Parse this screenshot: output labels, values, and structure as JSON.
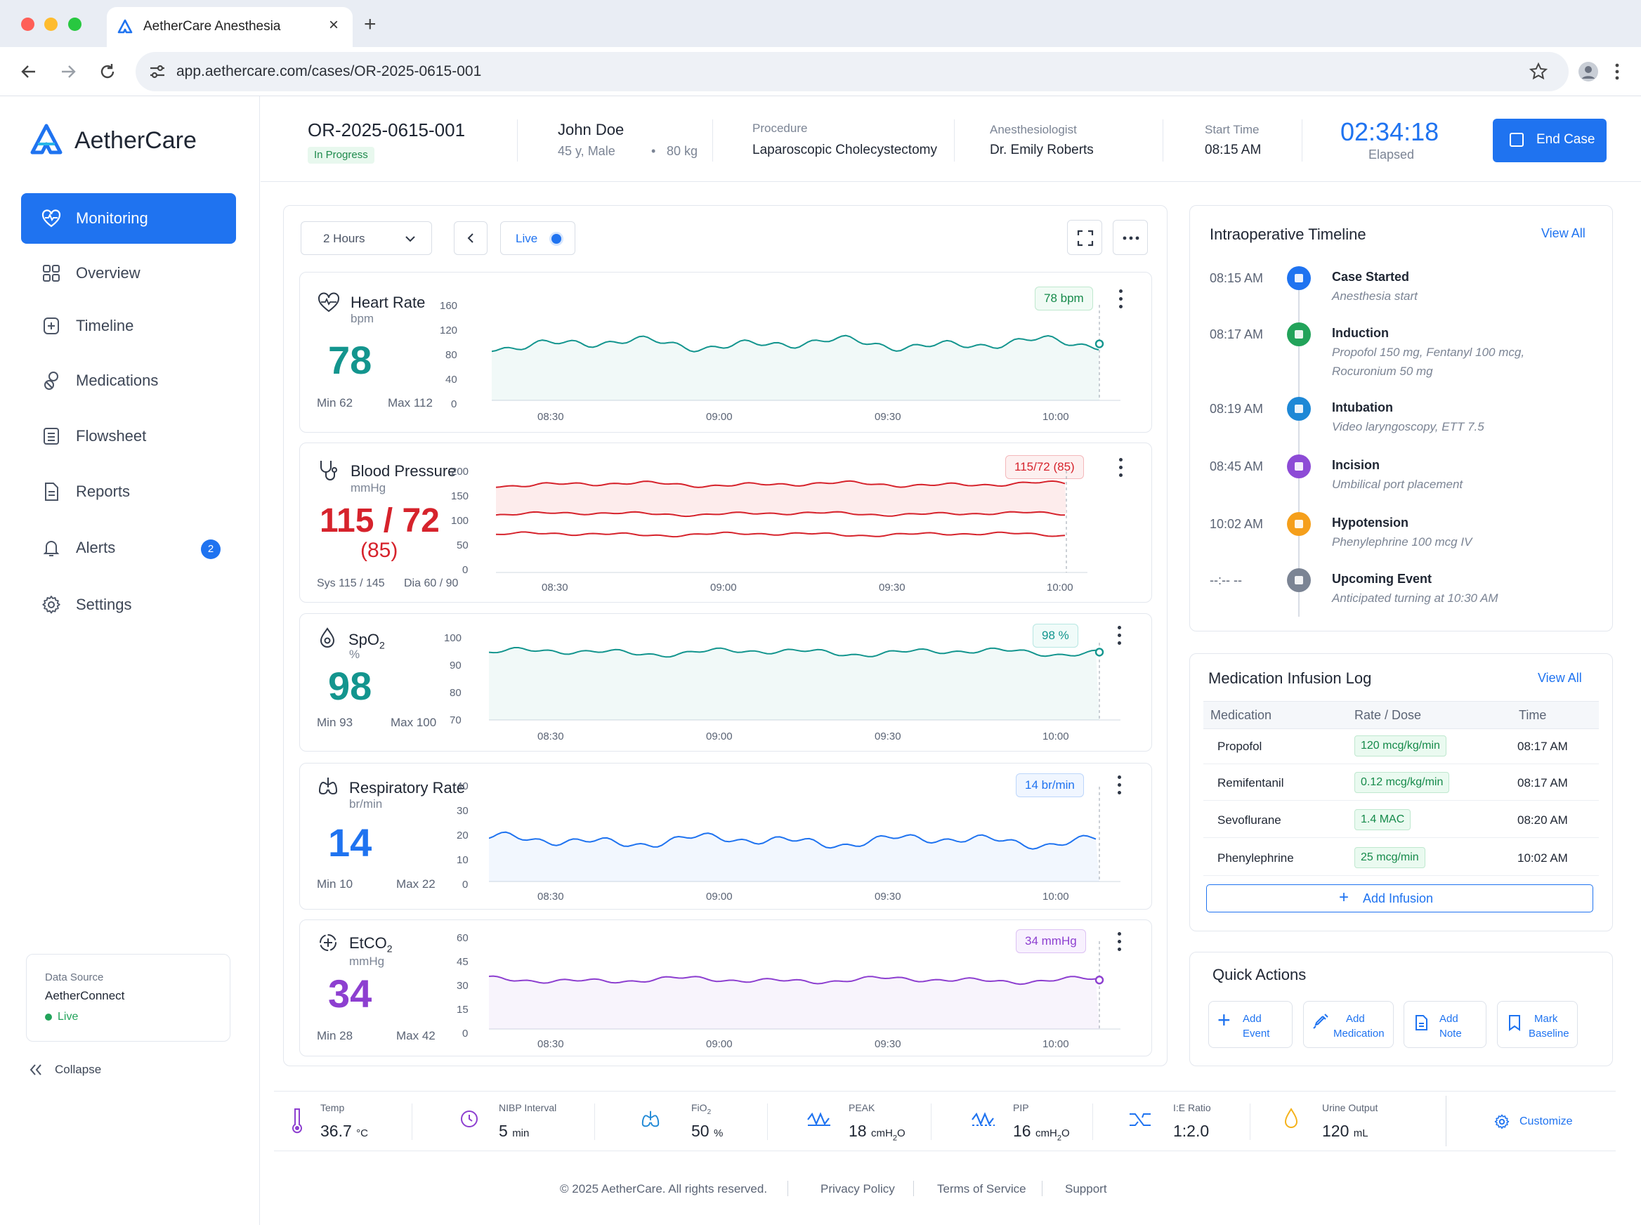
{
  "browser": {
    "tab_title": "AetherCare Anesthesia",
    "url": "app.aethercare.com/cases/OR-2025-0615-001"
  },
  "brand": {
    "name": "AetherCare",
    "accent": "#1f73f0"
  },
  "sidebar": {
    "items": [
      {
        "label": "Monitoring",
        "icon": "monitor-heart-icon"
      },
      {
        "label": "Overview",
        "icon": "grid-icon"
      },
      {
        "label": "Timeline",
        "icon": "timeline-icon"
      },
      {
        "label": "Medications",
        "icon": "pill-icon"
      },
      {
        "label": "Flowsheet",
        "icon": "list-icon"
      },
      {
        "label": "Reports",
        "icon": "report-icon"
      },
      {
        "label": "Alerts",
        "icon": "bell-icon",
        "badge": "2"
      },
      {
        "label": "Settings",
        "icon": "gear-icon"
      }
    ],
    "data_source": {
      "label": "Data Source",
      "name": "AetherConnect",
      "status": "Live"
    },
    "collapse": "Collapse"
  },
  "case": {
    "id": "OR-2025-0615-001",
    "status": "In Progress",
    "patient": "John Doe",
    "age_sex": "45 y, Male",
    "weight": "80 kg",
    "procedure_label": "Procedure",
    "procedure": "Laparoscopic Cholecystectomy",
    "anesth_label": "Anesthesiologist",
    "anesth": "Dr. Emily Roberts",
    "start_label": "Start Time",
    "start": "08:15 AM",
    "elapsed": "02:34:18",
    "elapsed_label": "Elapsed",
    "end_button": "End Case"
  },
  "toolbar": {
    "range": "2 Hours",
    "live": "Live"
  },
  "x_ticks": [
    "08:30",
    "09:00",
    "09:30",
    "10:00"
  ],
  "vitals": {
    "hr": {
      "name": "Heart Rate",
      "unit": "bpm",
      "value": "78",
      "min": "Min 62",
      "max": "Max 112",
      "pill": "78 bpm",
      "ticks": [
        "160",
        "120",
        "80",
        "40",
        "0"
      ]
    },
    "bp": {
      "name": "Blood Pressure",
      "unit": "mmHg",
      "value": "115 / 72",
      "mean": "(85)",
      "min": "Sys 115 / 145",
      "max": "Dia 60 / 90",
      "pill": "115/72 (85)",
      "ticks": [
        "200",
        "150",
        "100",
        "50",
        "0"
      ]
    },
    "spo2": {
      "name": "SpO",
      "sub": "2",
      "unit": "%",
      "value": "98",
      "min": "Min 93",
      "max": "Max 100",
      "pill": "98 %",
      "ticks": [
        "100",
        "90",
        "80",
        "70"
      ]
    },
    "rr": {
      "name": "Respiratory Rate",
      "unit": "br/min",
      "value": "14",
      "min": "Min 10",
      "max": "Max 22",
      "pill": "14 br/min",
      "ticks": [
        "40",
        "30",
        "20",
        "10",
        "0"
      ]
    },
    "etco2": {
      "name": "EtCO",
      "sub": "2",
      "unit": "mmHg",
      "value": "34",
      "min": "Min 28",
      "max": "Max 42",
      "pill": "34 mmHg",
      "ticks": [
        "60",
        "45",
        "30",
        "15",
        "0"
      ]
    }
  },
  "timeline": {
    "title": "Intraoperative Timeline",
    "view_all": "View All",
    "events": [
      {
        "time": "08:15 AM",
        "title": "Case Started",
        "desc": "Anesthesia start",
        "color": "#1f73f0"
      },
      {
        "time": "08:17 AM",
        "title": "Induction",
        "desc": "Propofol 150 mg, Fentanyl 100 mcg,",
        "desc2": "Rocuronium 50 mg",
        "color": "#22a35a"
      },
      {
        "time": "08:19 AM",
        "title": "Intubation",
        "desc": "Video laryngoscopy, ETT 7.5",
        "color": "#1e88d6"
      },
      {
        "time": "08:45 AM",
        "title": "Incision",
        "desc": "Umbilical port placement",
        "color": "#8d4bd6"
      },
      {
        "time": "10:02 AM",
        "title": "Hypotension",
        "desc": "Phenylephrine 100 mcg IV",
        "color": "#f59f1b"
      },
      {
        "time": "--:-- --",
        "title": "Upcoming Event",
        "desc": "Anticipated turning at 10:30 AM",
        "color": "#7b8494"
      }
    ]
  },
  "infusions": {
    "title": "Medication Infusion Log",
    "view_all": "View All",
    "headers": [
      "Medication",
      "Rate / Dose",
      "Time"
    ],
    "rows": [
      {
        "med": "Propofol",
        "rate": "120 mcg/kg/min",
        "time": "08:17 AM"
      },
      {
        "med": "Remifentanil",
        "rate": "0.12 mcg/kg/min",
        "time": "08:17 AM"
      },
      {
        "med": "Sevoflurane",
        "rate": "1.4 MAC",
        "time": "08:20 AM"
      },
      {
        "med": "Phenylephrine",
        "rate": "25 mcg/min",
        "time": "10:02 AM"
      }
    ],
    "add": "Add Infusion"
  },
  "quick_actions": {
    "title": "Quick Actions",
    "items": [
      {
        "l1": "Add",
        "l2": "Event"
      },
      {
        "l1": "Add",
        "l2": "Medication"
      },
      {
        "l1": "Add",
        "l2": "Note"
      },
      {
        "l1": "Mark",
        "l2": "Baseline"
      }
    ]
  },
  "bottom": {
    "temp": {
      "label": "Temp",
      "value": "36.7",
      "unit": "°C"
    },
    "nibp": {
      "label": "NIBP Interval",
      "value": "5",
      "unit": "min"
    },
    "fio2": {
      "label": "FiO",
      "value": "50",
      "unit": "%"
    },
    "peak": {
      "label": "PEAK",
      "value": "18",
      "unit": "cmH",
      "unit2": "O"
    },
    "pip": {
      "label": "PIP",
      "value": "16",
      "unit": "cmH",
      "unit2": "O"
    },
    "ie": {
      "label": "I:E Ratio",
      "value": "1:2.0"
    },
    "urine": {
      "label": "Urine Output",
      "value": "120",
      "unit": "mL"
    },
    "customize": "Customize"
  },
  "footer": {
    "copyright": "© 2025 AetherCare. All rights reserved.",
    "privacy": "Privacy Policy",
    "terms": "Terms of Service",
    "support": "Support"
  }
}
